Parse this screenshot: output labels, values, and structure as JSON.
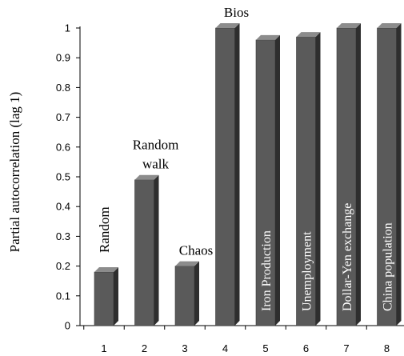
{
  "chart_data": {
    "type": "bar",
    "categories": [
      "1",
      "2",
      "3",
      "4",
      "5",
      "6",
      "7",
      "8"
    ],
    "values": [
      0.18,
      0.49,
      0.2,
      1.0,
      0.96,
      0.97,
      1.0,
      1.0
    ],
    "ylabel": "Partial autocorrelation (lag 1)",
    "xlabel": "",
    "ylim": [
      0,
      1
    ],
    "y_ticks": [
      "0",
      "0.1",
      "0.2",
      "0.3",
      "0.4",
      "0.5",
      "0.6",
      "0.7",
      "0.8",
      "0.9",
      "1"
    ],
    "bar_labels": [
      {
        "lines": [
          "Random"
        ],
        "orientation": "vertical",
        "placement": "above"
      },
      {
        "lines": [
          "Random",
          "walk"
        ],
        "orientation": "horizontal",
        "placement": "above"
      },
      {
        "lines": [
          "Chaos"
        ],
        "orientation": "horizontal",
        "placement": "above"
      },
      {
        "lines": [
          "Bios"
        ],
        "orientation": "horizontal",
        "placement": "above"
      },
      {
        "lines": [
          "Iron Production"
        ],
        "orientation": "vertical",
        "placement": "inside"
      },
      {
        "lines": [
          "Unemployment"
        ],
        "orientation": "vertical",
        "placement": "inside"
      },
      {
        "lines": [
          "Dollar-Yen exchange"
        ],
        "orientation": "vertical",
        "placement": "inside"
      },
      {
        "lines": [
          "China population"
        ],
        "orientation": "vertical",
        "placement": "inside"
      }
    ],
    "bar_style": "3d",
    "grid": false,
    "colors": {
      "bar_front": "#5a5a5a",
      "bar_side": "#2e2e2e",
      "bar_top": "#8c8c8c",
      "axis": "#000000"
    }
  }
}
